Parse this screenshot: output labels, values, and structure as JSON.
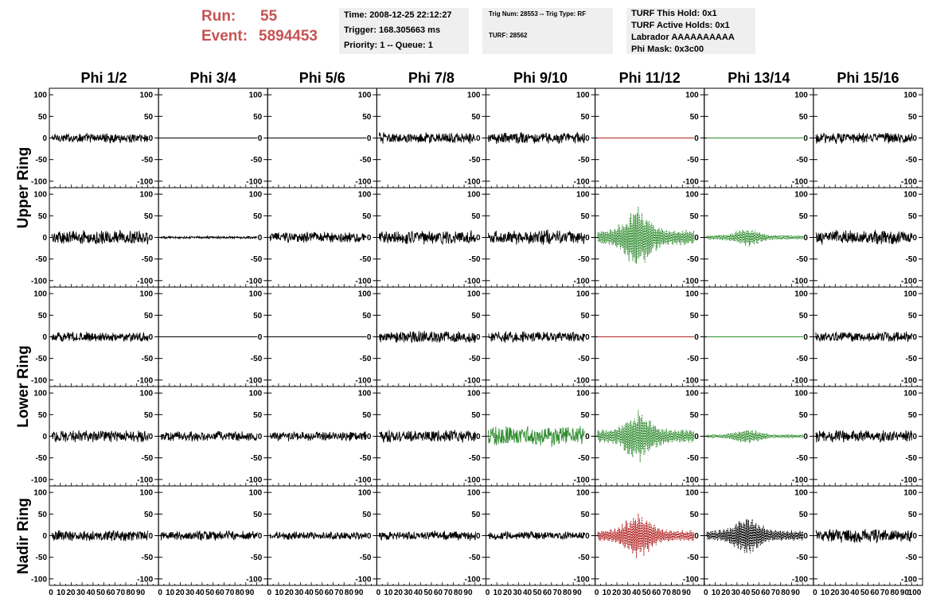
{
  "header": {
    "run_label": "Run:",
    "run_value": "55",
    "event_label": "Event:",
    "event_value": "5894453",
    "time": "Time: 2008-12-25 22:12:27",
    "trigger": "Trigger: 168.305663 ms",
    "priority": "Priority: 1 -- Queue: 1",
    "trig_num": "Trig Num: 28553 -- Trig Type: RF",
    "turf": "TURF: 28562",
    "turf_hold": "TURF This Hold: 0x1",
    "turf_active": "TURF Active Holds: 0x1",
    "labrador": "Labrador AAAAAAAAAA",
    "phi_mask": "Phi Mask: 0x3c00"
  },
  "colors": {
    "run_text": "#c65353",
    "box_bg": "#efefef",
    "trace_black": "#000000",
    "trace_green": "#2e8b2e",
    "trace_red": "#b22222"
  },
  "phi_labels": [
    "Phi 1/2",
    "Phi 3/4",
    "Phi 5/6",
    "Phi 7/8",
    "Phi 9/10",
    "Phi 11/12",
    "Phi 13/14",
    "Phi 15/16"
  ],
  "ring_labels": [
    "Upper Ring",
    "Lower Ring",
    "Nadir Ring"
  ],
  "chart_data": {
    "type": "line",
    "layout": "grid of 5 rows x 8 columns of waveform panels",
    "x_range": [
      0,
      100
    ],
    "y_range": [
      -115,
      115
    ],
    "y_ticks": [
      100,
      50,
      0,
      -50,
      -100
    ],
    "x_tick_labels": [
      "0",
      "10",
      "20",
      "30",
      "40",
      "50",
      "60",
      "70",
      "80",
      "90",
      "100"
    ],
    "rows": [
      {
        "ring": "Upper Ring",
        "panels": [
          {
            "phi": "Phi 1/2",
            "style": "noise",
            "amplitude": 12,
            "color": "black"
          },
          {
            "phi": "Phi 3/4",
            "style": "flat",
            "amplitude": 0,
            "color": "black"
          },
          {
            "phi": "Phi 5/6",
            "style": "flat",
            "amplitude": 0,
            "color": "black"
          },
          {
            "phi": "Phi 7/8",
            "style": "noise",
            "amplitude": 14,
            "color": "black"
          },
          {
            "phi": "Phi 9/10",
            "style": "noise",
            "amplitude": 14,
            "color": "black"
          },
          {
            "phi": "Phi 11/12",
            "style": "flat",
            "amplitude": 0,
            "color": "red"
          },
          {
            "phi": "Phi 13/14",
            "style": "flat",
            "amplitude": 0,
            "color": "green"
          },
          {
            "phi": "Phi 15/16",
            "style": "noise",
            "amplitude": 14,
            "color": "black"
          }
        ]
      },
      {
        "ring": "Upper Ring",
        "panels": [
          {
            "phi": "Phi 1/2",
            "style": "noise",
            "amplitude": 18,
            "color": "black"
          },
          {
            "phi": "Phi 3/4",
            "style": "noise",
            "amplitude": 3,
            "color": "black"
          },
          {
            "phi": "Phi 5/6",
            "style": "noise",
            "amplitude": 14,
            "color": "black"
          },
          {
            "phi": "Phi 7/8",
            "style": "noise",
            "amplitude": 18,
            "color": "black"
          },
          {
            "phi": "Phi 9/10",
            "style": "noise",
            "amplitude": 18,
            "color": "black"
          },
          {
            "phi": "Phi 11/12",
            "style": "pulse",
            "amplitude": 75,
            "color": "green",
            "dashed": true
          },
          {
            "phi": "Phi 13/14",
            "style": "pulse",
            "amplitude": 22,
            "color": "green",
            "dashed": true
          },
          {
            "phi": "Phi 15/16",
            "style": "noise",
            "amplitude": 18,
            "color": "black"
          }
        ]
      },
      {
        "ring": "Lower Ring",
        "panels": [
          {
            "phi": "Phi 1/2",
            "style": "noise",
            "amplitude": 12,
            "color": "black"
          },
          {
            "phi": "Phi 3/4",
            "style": "flat",
            "amplitude": 0,
            "color": "black"
          },
          {
            "phi": "Phi 5/6",
            "style": "flat",
            "amplitude": 0,
            "color": "black"
          },
          {
            "phi": "Phi 7/8",
            "style": "noise",
            "amplitude": 15,
            "color": "black"
          },
          {
            "phi": "Phi 9/10",
            "style": "noise",
            "amplitude": 14,
            "color": "black"
          },
          {
            "phi": "Phi 11/12",
            "style": "flat",
            "amplitude": 0,
            "color": "red"
          },
          {
            "phi": "Phi 13/14",
            "style": "flat",
            "amplitude": 0,
            "color": "green"
          },
          {
            "phi": "Phi 15/16",
            "style": "noise",
            "amplitude": 13,
            "color": "black"
          }
        ]
      },
      {
        "ring": "Lower Ring",
        "panels": [
          {
            "phi": "Phi 1/2",
            "style": "noise",
            "amplitude": 15,
            "color": "black"
          },
          {
            "phi": "Phi 3/4",
            "style": "noise",
            "amplitude": 13,
            "color": "black"
          },
          {
            "phi": "Phi 5/6",
            "style": "noise",
            "amplitude": 12,
            "color": "black"
          },
          {
            "phi": "Phi 7/8",
            "style": "noise",
            "amplitude": 15,
            "color": "black"
          },
          {
            "phi": "Phi 9/10",
            "style": "noise",
            "amplitude": 25,
            "color": "green",
            "dashed": false
          },
          {
            "phi": "Phi 11/12",
            "style": "pulse",
            "amplitude": 65,
            "color": "green",
            "dashed": true
          },
          {
            "phi": "Phi 13/14",
            "style": "pulse",
            "amplitude": 18,
            "color": "green",
            "dashed": true
          },
          {
            "phi": "Phi 15/16",
            "style": "noise",
            "amplitude": 15,
            "color": "black"
          }
        ]
      },
      {
        "ring": "Nadir Ring",
        "panels": [
          {
            "phi": "Phi 1/2",
            "style": "noise",
            "amplitude": 14,
            "color": "black"
          },
          {
            "phi": "Phi 3/4",
            "style": "noise",
            "amplitude": 12,
            "color": "black"
          },
          {
            "phi": "Phi 5/6",
            "style": "noise",
            "amplitude": 10,
            "color": "black"
          },
          {
            "phi": "Phi 7/8",
            "style": "noise",
            "amplitude": 12,
            "color": "black"
          },
          {
            "phi": "Phi 9/10",
            "style": "noise",
            "amplitude": 10,
            "color": "black"
          },
          {
            "phi": "Phi 11/12",
            "style": "pulse",
            "amplitude": 55,
            "color": "red",
            "dashed": true
          },
          {
            "phi": "Phi 13/14",
            "style": "pulse",
            "amplitude": 50,
            "color": "black",
            "dashed": true
          },
          {
            "phi": "Phi 15/16",
            "style": "noise",
            "amplitude": 18,
            "color": "black"
          }
        ]
      }
    ]
  }
}
